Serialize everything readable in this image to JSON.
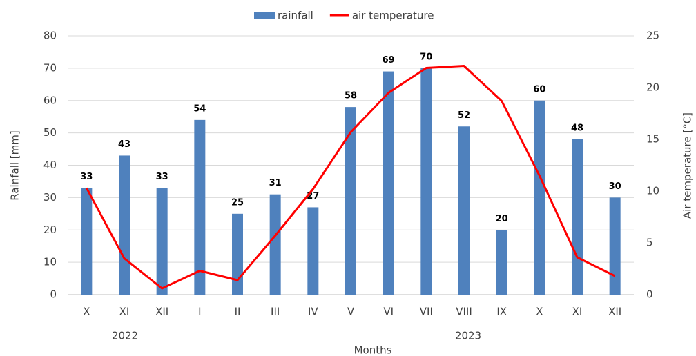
{
  "chart_data": {
    "type": "bar",
    "x_label": "Months",
    "y_label": "Rainfall [mm]",
    "y2_label": "Air temperature [°C]",
    "categories": [
      "X",
      "XI",
      "XII",
      "I",
      "II",
      "III",
      "IV",
      "V",
      "VI",
      "VII",
      "VIII",
      "IX",
      "X",
      "XI",
      "XII"
    ],
    "x_groups": [
      "2022",
      "2023"
    ],
    "series": [
      {
        "name": "rainfall",
        "type": "bar",
        "color": "#4f81bd",
        "values": [
          33,
          43,
          33,
          54,
          25,
          31,
          27,
          58,
          69,
          70,
          52,
          20,
          60,
          48,
          30
        ]
      },
      {
        "name": "air temperature",
        "type": "line",
        "axis": "y2",
        "color": "#ff0000",
        "values": [
          10.3,
          3.5,
          0.6,
          2.3,
          1.4,
          5.7,
          10.2,
          15.7,
          19.5,
          21.9,
          22.1,
          18.7,
          11.5,
          3.6,
          1.8
        ]
      }
    ],
    "ylim": [
      0,
      80
    ],
    "yticks": [
      0,
      10,
      20,
      30,
      40,
      50,
      60,
      70,
      80
    ],
    "y2lim": [
      0,
      25
    ],
    "y2ticks": [
      0,
      5,
      10,
      15,
      20,
      25
    ],
    "grid": true,
    "legend": "top"
  }
}
